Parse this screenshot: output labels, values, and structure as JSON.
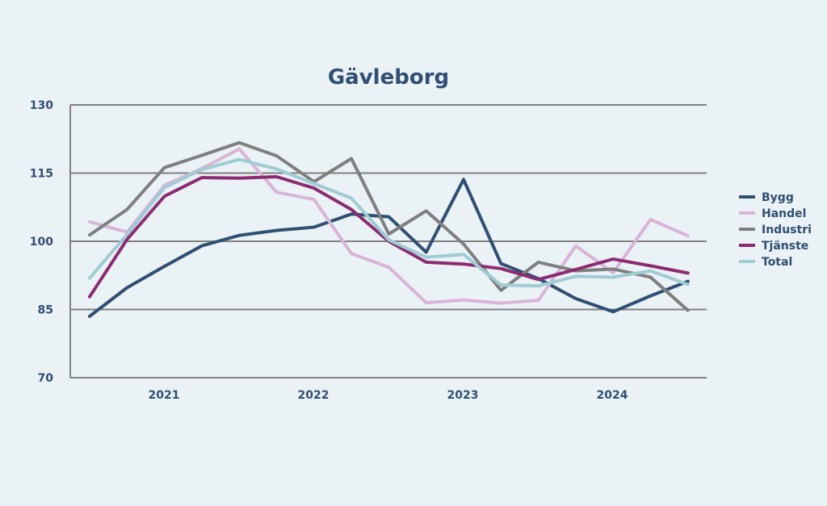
{
  "chart_data": {
    "type": "line",
    "title": "Gävleborg",
    "xlabel": "",
    "ylabel": "",
    "ylim": [
      70,
      130
    ],
    "yticks": [
      70,
      85,
      100,
      115,
      130
    ],
    "year_labels": [
      "2021",
      "2022",
      "2023",
      "2024"
    ],
    "legend_position": "right",
    "grid": true,
    "points_per_series": 17,
    "series": [
      {
        "name": "Bygg",
        "color": "#2f4f73",
        "values": [
          83.5,
          89.8,
          94.5,
          99.0,
          101.3,
          102.4,
          103.1,
          106.0,
          105.4,
          97.6,
          113.6,
          95.1,
          91.8,
          87.4,
          84.5,
          88.0,
          91.2
        ]
      },
      {
        "name": "Handel",
        "color": "#d8b4d9",
        "values": [
          104.3,
          102.0,
          112.3,
          116.0,
          120.3,
          110.8,
          109.2,
          97.3,
          94.3,
          86.5,
          87.1,
          86.4,
          87.0,
          99.0,
          93.1,
          104.8,
          101.2
        ]
      },
      {
        "name": "Industri",
        "color": "#7f7f7f",
        "values": [
          101.4,
          107.0,
          116.2,
          118.9,
          121.7,
          118.8,
          113.1,
          118.2,
          101.6,
          106.7,
          99.4,
          89.2,
          95.4,
          93.5,
          93.9,
          92.1,
          84.8
        ]
      },
      {
        "name": "Tjänste",
        "color": "#8b2c73",
        "values": [
          87.8,
          100.4,
          109.9,
          114.0,
          113.9,
          114.2,
          111.7,
          107.0,
          100.0,
          95.4,
          95.0,
          94.0,
          91.6,
          93.8,
          96.1,
          94.6,
          93.0
        ]
      },
      {
        "name": "Total",
        "color": "#9fccd4",
        "values": [
          91.9,
          101.5,
          111.8,
          115.8,
          118.0,
          115.9,
          112.7,
          109.5,
          100.3,
          96.5,
          97.1,
          90.4,
          90.2,
          92.3,
          92.1,
          93.5,
          90.5
        ]
      }
    ]
  }
}
